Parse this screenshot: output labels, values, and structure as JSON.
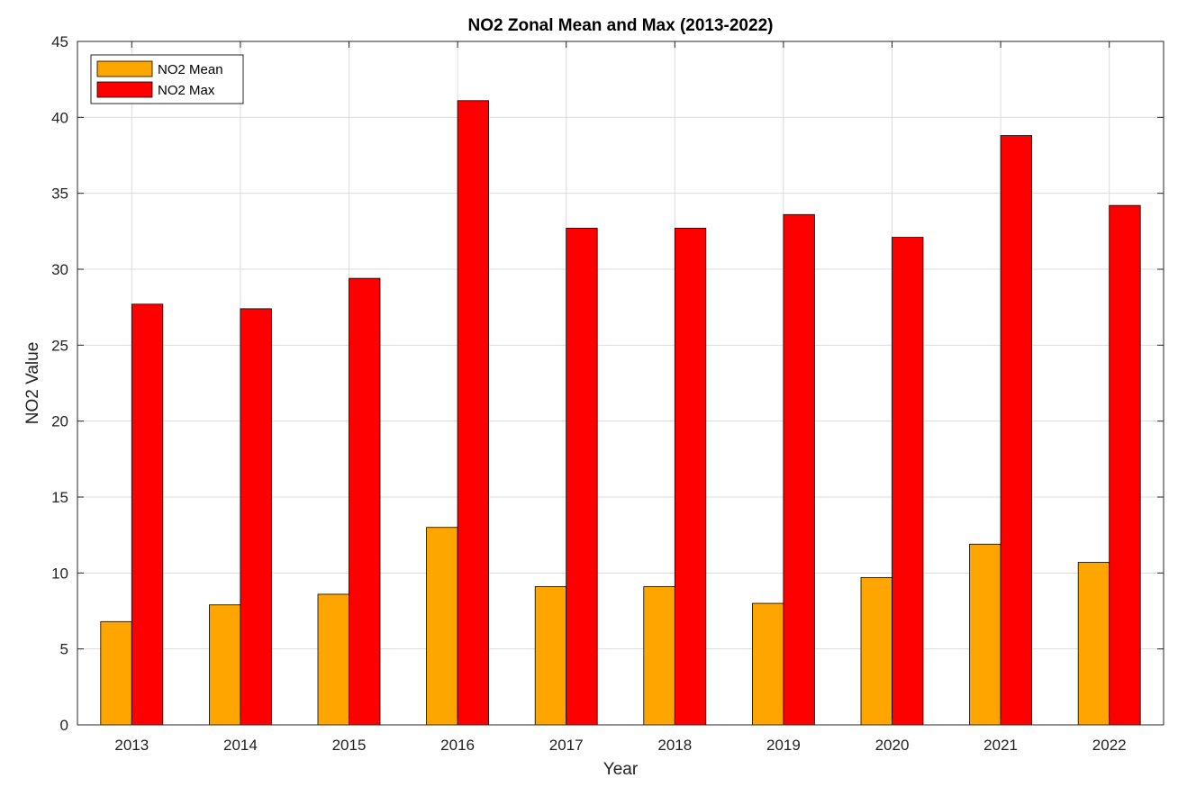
{
  "chart_data": {
    "type": "bar",
    "title": "NO2 Zonal Mean and Max (2013-2022)",
    "xlabel": "Year",
    "ylabel": "NO2 Value",
    "categories": [
      "2013",
      "2014",
      "2015",
      "2016",
      "2017",
      "2018",
      "2019",
      "2020",
      "2021",
      "2022"
    ],
    "series": [
      {
        "name": "NO2 Mean",
        "color": "#FFA500",
        "values": [
          6.8,
          7.9,
          8.6,
          13.0,
          9.1,
          9.1,
          8.0,
          9.7,
          11.9,
          10.7
        ]
      },
      {
        "name": "NO2 Max",
        "color": "#FF0000",
        "values": [
          27.7,
          27.4,
          29.4,
          41.1,
          32.7,
          32.7,
          33.6,
          32.1,
          38.8,
          34.2
        ]
      }
    ],
    "ylim": [
      0,
      45
    ],
    "yticks": [
      0,
      5,
      10,
      15,
      20,
      25,
      30,
      35,
      40,
      45
    ],
    "grid": true,
    "legend_position": "top-left"
  }
}
